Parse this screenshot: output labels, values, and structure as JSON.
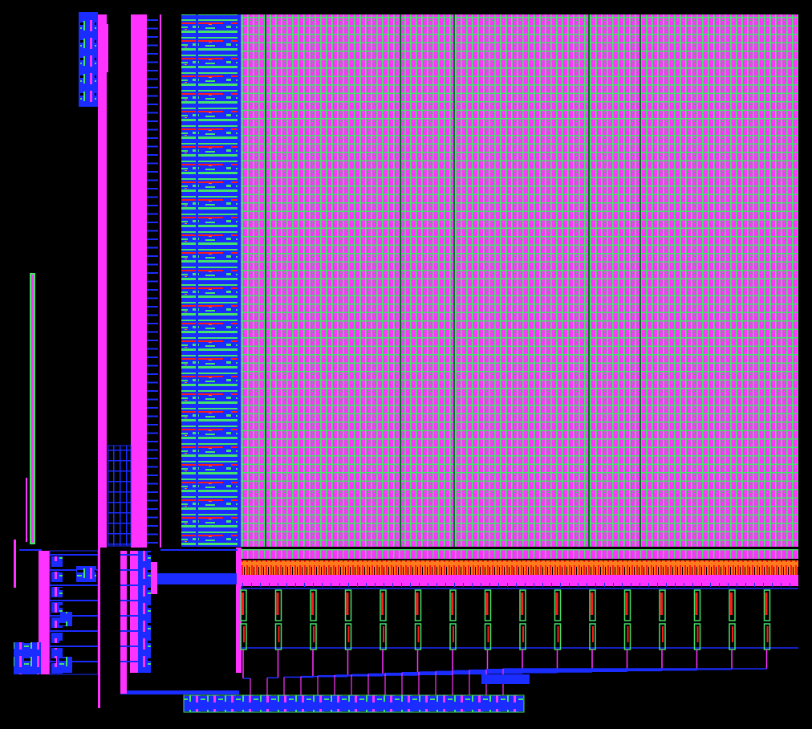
{
  "view": {
    "background": "#000000",
    "layers": {
      "metal1": "#1a2cff",
      "metal2": "#ff33ff",
      "diffusion": "#44e36a",
      "poly": "#ff1a1a",
      "implant": "#ff7a1a",
      "strap": "#0b6b2a"
    }
  },
  "memory_array": {
    "columns": 100,
    "rows": 63,
    "column_mux_groups": 16
  }
}
